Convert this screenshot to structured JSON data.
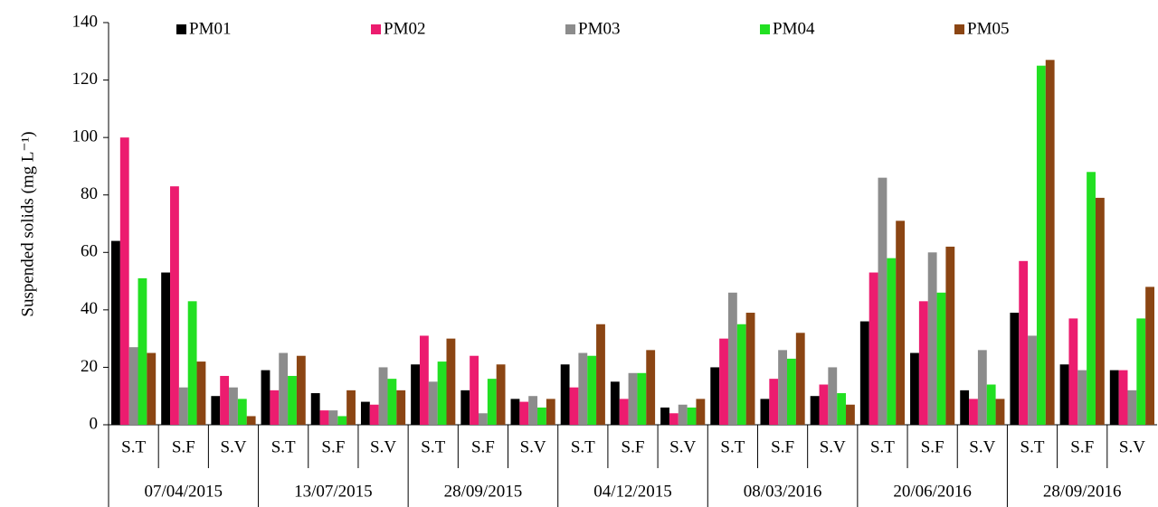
{
  "chart_data": {
    "type": "bar",
    "y_label": "Suspended solids  (mg L⁻¹)",
    "categories": [
      "S.T",
      "S.F",
      "S.V",
      "S.T",
      "S.F",
      "S.V",
      "S.T",
      "S.F",
      "S.V",
      "S.T",
      "S.F",
      "S.V",
      "S.T",
      "S.F",
      "S.V",
      "S.T",
      "S.F",
      "S.V",
      "S.T",
      "S.F",
      "S.V"
    ],
    "groups": [
      "07/04/2015",
      "13/07/2015",
      "28/09/2015",
      "04/12/2015",
      "08/03/2016",
      "20/06/2016",
      "28/09/2016"
    ],
    "series": [
      {
        "name": "PM01",
        "color": "#000000",
        "values": [
          64,
          53,
          10,
          19,
          11,
          8,
          21,
          12,
          9,
          21,
          15,
          6,
          20,
          9,
          10,
          36,
          25,
          12,
          39,
          21,
          19
        ]
      },
      {
        "name": "PM02",
        "color": "#ec1c6f",
        "values": [
          100,
          83,
          17,
          12,
          5,
          7,
          31,
          24,
          8,
          13,
          9,
          4,
          30,
          16,
          14,
          53,
          43,
          9,
          57,
          37,
          19
        ]
      },
      {
        "name": "PM03",
        "color": "#8c8c8c",
        "values": [
          27,
          13,
          13,
          25,
          5,
          20,
          15,
          4,
          10,
          25,
          18,
          7,
          46,
          26,
          20,
          86,
          60,
          26,
          31,
          19,
          12
        ]
      },
      {
        "name": "PM04",
        "color": "#22e022",
        "values": [
          51,
          43,
          9,
          17,
          3,
          16,
          22,
          16,
          6,
          24,
          18,
          6,
          35,
          23,
          11,
          58,
          46,
          14,
          125,
          88,
          37
        ]
      },
      {
        "name": "PM05",
        "color": "#8b4513",
        "values": [
          25,
          22,
          3,
          24,
          12,
          12,
          30,
          21,
          9,
          35,
          26,
          9,
          39,
          32,
          7,
          71,
          62,
          9,
          127,
          79,
          48
        ]
      }
    ],
    "ylim": [
      0,
      140
    ],
    "yticks": [
      0,
      20,
      40,
      60,
      80,
      100,
      120,
      140
    ],
    "grid": false,
    "legend": "top"
  }
}
